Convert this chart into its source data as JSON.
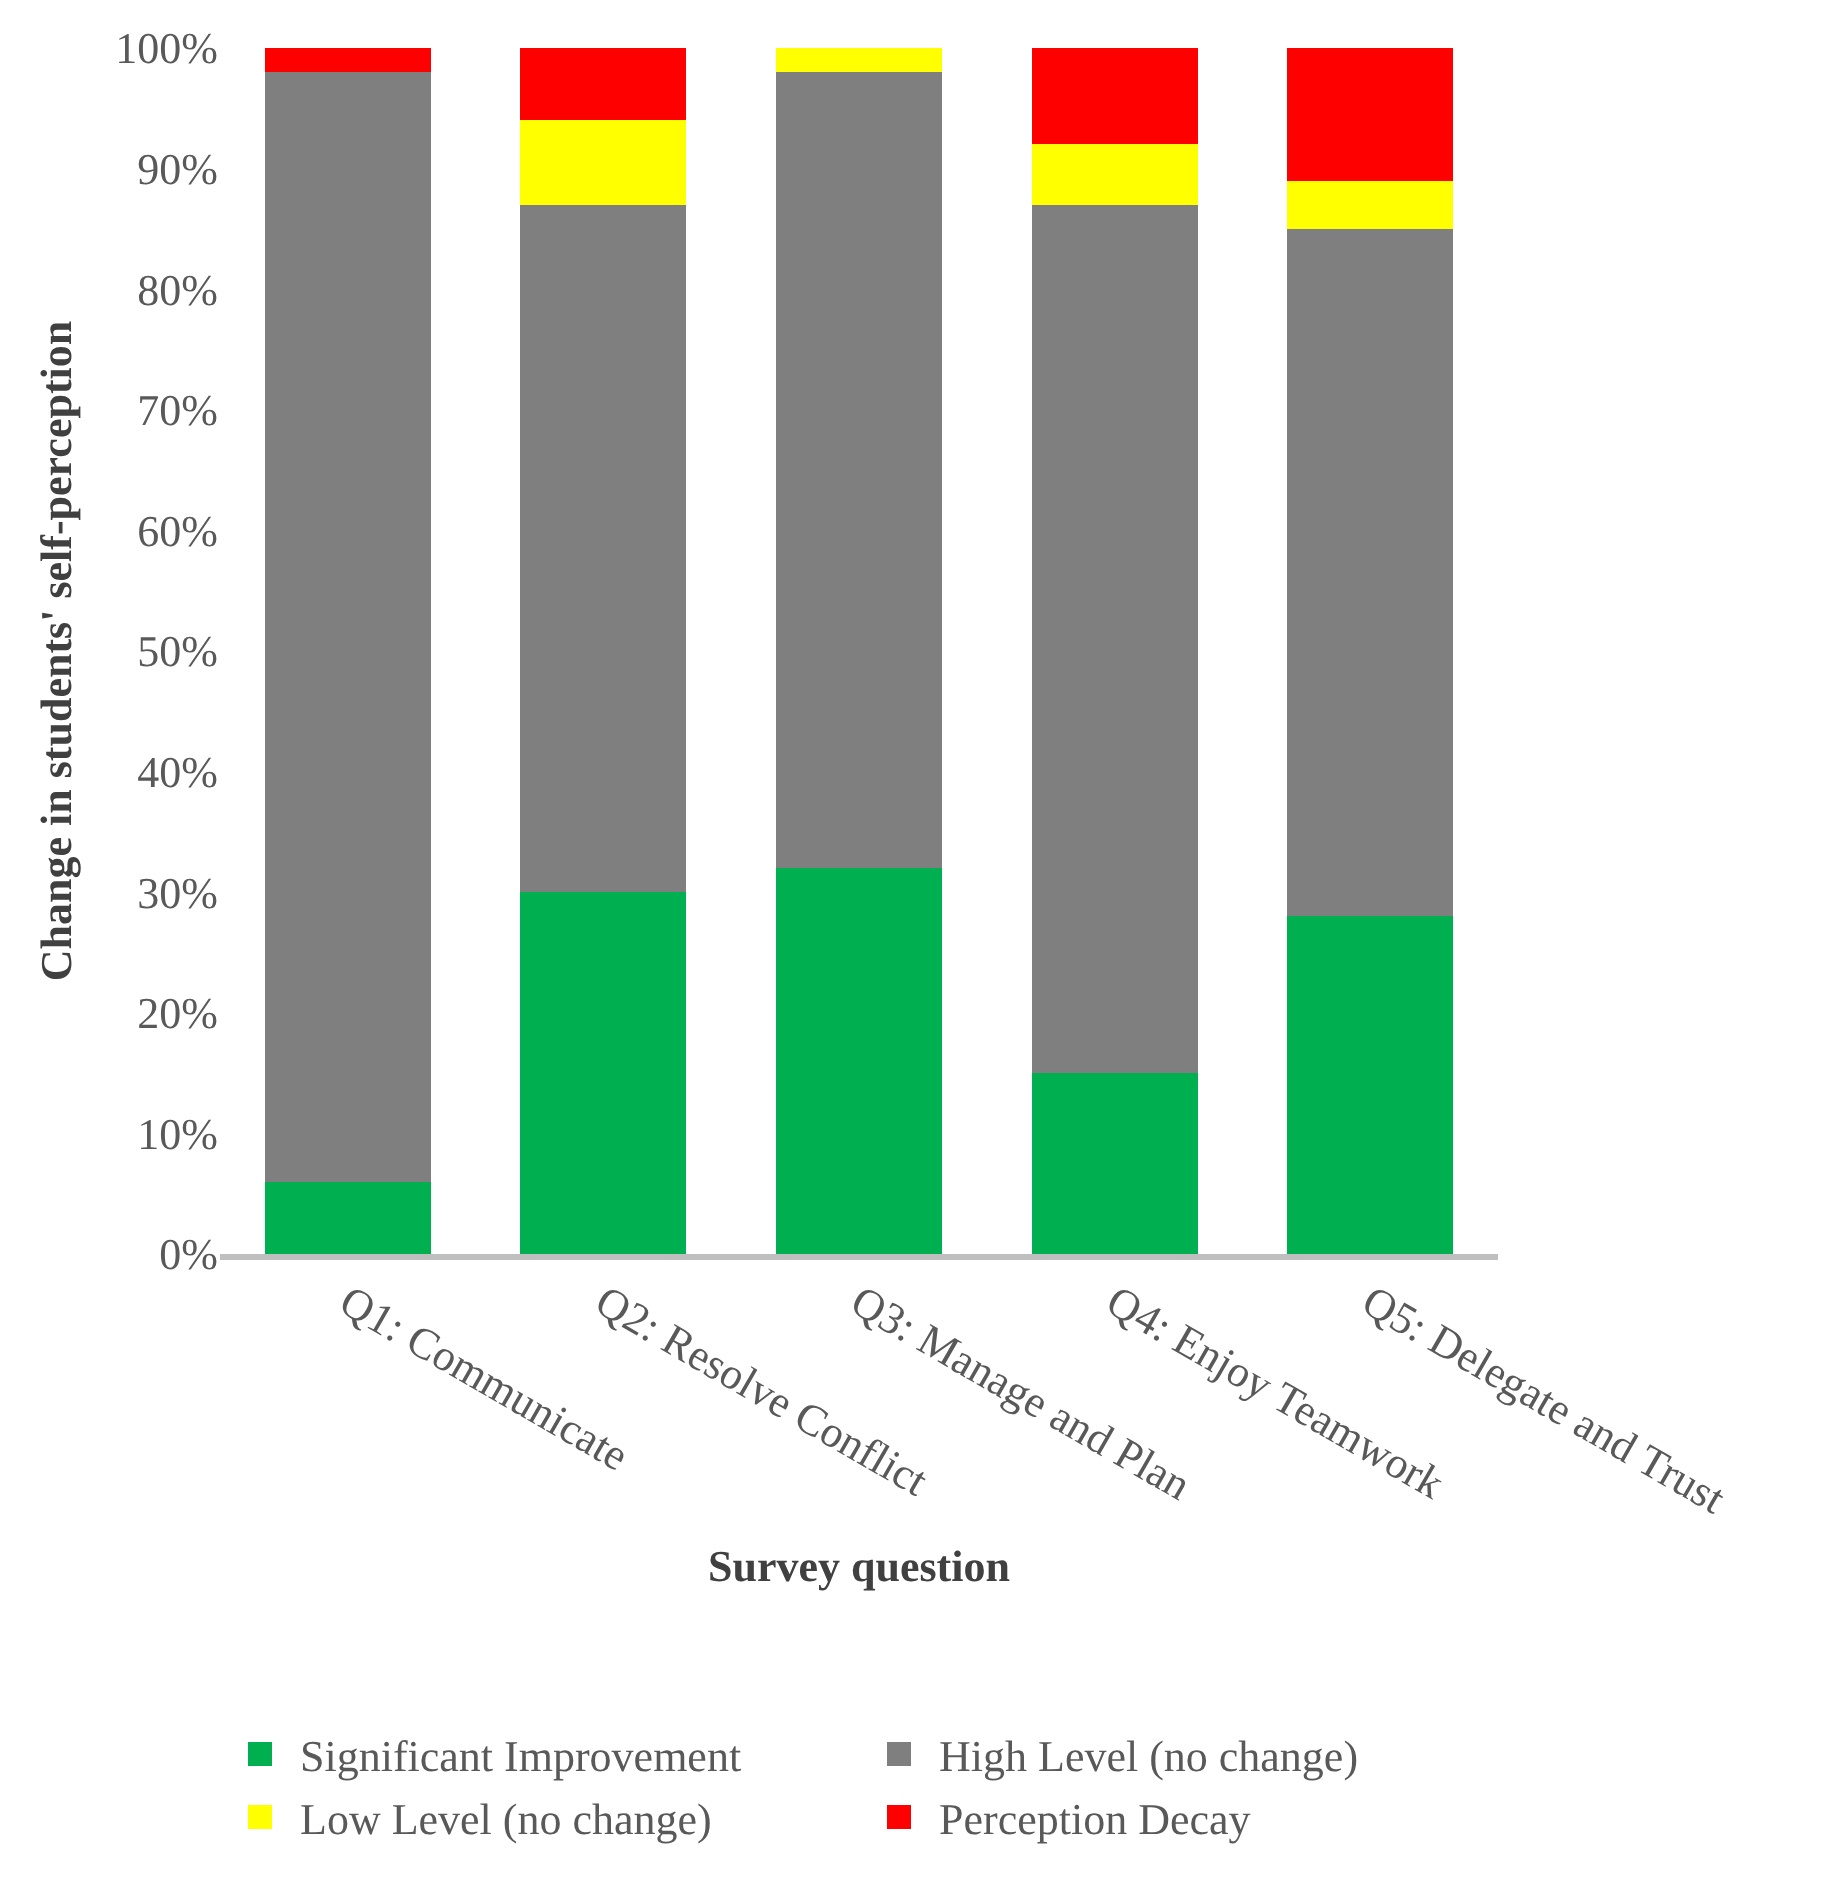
{
  "chart_data": {
    "type": "bar",
    "stacked": true,
    "xlabel": "Survey question",
    "ylabel": "Change in students' self-perception",
    "categories": [
      "Q1: Communicate",
      "Q2: Resolve Conflict",
      "Q3: Manage and Plan",
      "Q4: Enjoy Teamwork",
      "Q5: Delegate and Trust"
    ],
    "series": [
      {
        "name": "Significant Improvement",
        "color": "#00b050",
        "values": [
          6,
          30,
          32,
          15,
          28
        ]
      },
      {
        "name": "High Level (no change)",
        "color": "#7f7f7f",
        "values": [
          92,
          57,
          66,
          72,
          57
        ]
      },
      {
        "name": "Low Level (no change)",
        "color": "#ffff00",
        "values": [
          0,
          7,
          2,
          5,
          4
        ]
      },
      {
        "name": "Perception Decay",
        "color": "#ff0000",
        "values": [
          2,
          6,
          0,
          8,
          11
        ]
      }
    ],
    "ylim": [
      0,
      100
    ],
    "yticks": [
      {
        "value": 0,
        "label": "0%"
      },
      {
        "value": 10,
        "label": "10%"
      },
      {
        "value": 20,
        "label": "20%"
      },
      {
        "value": 30,
        "label": "30%"
      },
      {
        "value": 40,
        "label": "40%"
      },
      {
        "value": 50,
        "label": "50%"
      },
      {
        "value": 60,
        "label": "60%"
      },
      {
        "value": 70,
        "label": "70%"
      },
      {
        "value": 80,
        "label": "80%"
      },
      {
        "value": 90,
        "label": "90%"
      },
      {
        "value": 100,
        "label": "100%"
      }
    ],
    "legend": "bottom"
  }
}
